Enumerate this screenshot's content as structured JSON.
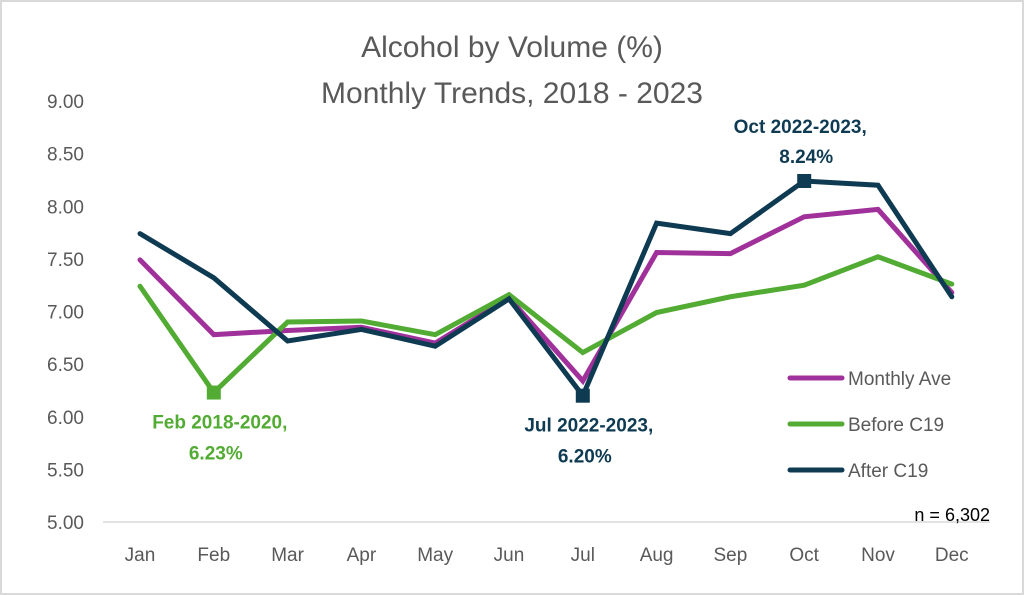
{
  "chart_data": {
    "type": "line",
    "title": [
      "Alcohol by Volume (%)",
      "Monthly Trends, 2018 - 2023"
    ],
    "xlabel": "",
    "ylabel": "",
    "categories": [
      "Jan",
      "Feb",
      "Mar",
      "Apr",
      "May",
      "Jun",
      "Jul",
      "Aug",
      "Sep",
      "Oct",
      "Nov",
      "Dec"
    ],
    "ylim": [
      5.0,
      9.0
    ],
    "yticks": [
      "5.00",
      "5.50",
      "6.00",
      "6.50",
      "7.00",
      "7.50",
      "8.00",
      "8.50",
      "9.00"
    ],
    "ytick_values": [
      5.0,
      5.5,
      6.0,
      6.5,
      7.0,
      7.5,
      8.0,
      8.5,
      9.0
    ],
    "grid": false,
    "legend_position": "bottom-right",
    "series": [
      {
        "name": "Monthly Ave",
        "color": "#a0309a",
        "values": [
          7.49,
          6.78,
          6.82,
          6.85,
          6.7,
          7.13,
          6.34,
          7.56,
          7.55,
          7.9,
          7.97,
          7.18
        ]
      },
      {
        "name": "Before C19",
        "color": "#52ab32",
        "values": [
          7.24,
          6.23,
          6.9,
          6.91,
          6.78,
          7.16,
          6.61,
          6.99,
          7.14,
          7.25,
          7.52,
          7.26
        ]
      },
      {
        "name": "After C19",
        "color": "#0e3a52",
        "values": [
          7.74,
          7.32,
          6.72,
          6.83,
          6.67,
          7.12,
          6.2,
          7.84,
          7.74,
          8.24,
          8.2,
          7.14
        ]
      }
    ],
    "annotations": [
      {
        "series": "Before C19",
        "category": "Feb",
        "value": 6.23,
        "lines": [
          "Feb 2018-2020,",
          "6.23%"
        ],
        "color": "#52ab32",
        "placement": "below"
      },
      {
        "series": "After C19",
        "category": "Jul",
        "value": 6.2,
        "lines": [
          "Jul 2022-2023,",
          "6.20%"
        ],
        "color": "#0e3a52",
        "placement": "below"
      },
      {
        "series": "After C19",
        "category": "Oct",
        "value": 8.24,
        "lines": [
          "Oct 2022-2023,",
          "8.24%"
        ],
        "color": "#0e3a52",
        "placement": "above"
      }
    ],
    "note": "n = 6,302"
  }
}
